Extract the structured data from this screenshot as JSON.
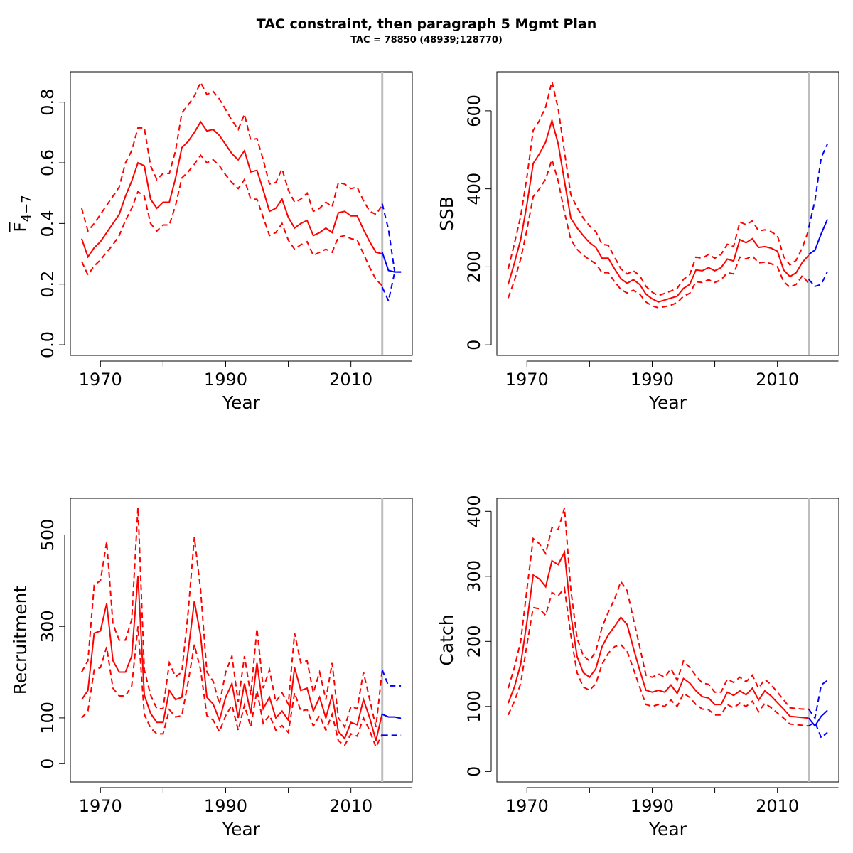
{
  "title": "TAC constraint, then paragraph 5 Mgmt Plan",
  "subtitle": "TAC = 78850 (48939;128770)",
  "colors": {
    "history": "#ff0000",
    "forecast": "#0000ff",
    "divider": "#bebebe"
  },
  "chart_data": [
    {
      "id": "fbar",
      "type": "line",
      "xlabel": "Year",
      "ylabel_main": "F",
      "ylabel_sub": "4−7",
      "xticks": [
        1970,
        1990,
        2010
      ],
      "yticks": [
        0.0,
        0.2,
        0.4,
        0.6,
        0.8
      ],
      "ytick_labels": [
        "0.0",
        "0.2",
        "0.4",
        "0.6",
        "0.8"
      ],
      "xlim": [
        1965.2,
        2019.8
      ],
      "ylim": [
        -0.035,
        0.9
      ],
      "divider_x": 2015,
      "history": {
        "x": [
          1967,
          1968,
          1969,
          1970,
          1971,
          1972,
          1973,
          1974,
          1975,
          1976,
          1977,
          1978,
          1979,
          1980,
          1981,
          1982,
          1983,
          1984,
          1985,
          1986,
          1987,
          1988,
          1989,
          1990,
          1991,
          1992,
          1993,
          1994,
          1995,
          1996,
          1997,
          1998,
          1999,
          2000,
          2001,
          2002,
          2003,
          2004,
          2005,
          2006,
          2007,
          2008,
          2009,
          2010,
          2011,
          2012,
          2013,
          2014,
          2015
        ],
        "est": [
          0.35,
          0.29,
          0.32,
          0.34,
          0.37,
          0.4,
          0.43,
          0.49,
          0.54,
          0.6,
          0.59,
          0.48,
          0.45,
          0.47,
          0.47,
          0.55,
          0.65,
          0.67,
          0.7,
          0.735,
          0.705,
          0.71,
          0.69,
          0.66,
          0.63,
          0.61,
          0.64,
          0.57,
          0.575,
          0.51,
          0.44,
          0.45,
          0.48,
          0.42,
          0.385,
          0.4,
          0.41,
          0.36,
          0.37,
          0.385,
          0.37,
          0.435,
          0.44,
          0.425,
          0.425,
          0.38,
          0.34,
          0.305,
          0.3
        ],
        "upper": [
          0.45,
          0.375,
          0.4,
          0.43,
          0.46,
          0.49,
          0.52,
          0.6,
          0.64,
          0.715,
          0.715,
          0.59,
          0.545,
          0.565,
          0.565,
          0.64,
          0.765,
          0.79,
          0.82,
          0.865,
          0.825,
          0.835,
          0.81,
          0.775,
          0.74,
          0.71,
          0.76,
          0.675,
          0.68,
          0.61,
          0.53,
          0.535,
          0.58,
          0.51,
          0.47,
          0.48,
          0.5,
          0.44,
          0.45,
          0.47,
          0.455,
          0.535,
          0.53,
          0.515,
          0.52,
          0.475,
          0.44,
          0.43,
          0.46
        ],
        "lower": [
          0.275,
          0.23,
          0.26,
          0.28,
          0.305,
          0.33,
          0.36,
          0.41,
          0.45,
          0.505,
          0.49,
          0.4,
          0.375,
          0.395,
          0.395,
          0.46,
          0.55,
          0.57,
          0.595,
          0.625,
          0.6,
          0.61,
          0.59,
          0.56,
          0.535,
          0.515,
          0.545,
          0.48,
          0.48,
          0.42,
          0.36,
          0.37,
          0.4,
          0.345,
          0.315,
          0.33,
          0.34,
          0.295,
          0.305,
          0.315,
          0.305,
          0.355,
          0.36,
          0.35,
          0.345,
          0.3,
          0.255,
          0.215,
          0.195
        ]
      },
      "forecast": {
        "x": [
          2015,
          2016,
          2017,
          2018
        ],
        "est": [
          0.305,
          0.245,
          0.24,
          0.24
        ],
        "upper": [
          0.465,
          0.38,
          0.24,
          0.24
        ],
        "lower": [
          0.19,
          0.145,
          0.24,
          0.24
        ]
      }
    },
    {
      "id": "ssb",
      "type": "line",
      "xlabel": "Year",
      "ylabel_main": "SSB",
      "ylabel_sub": "",
      "xticks": [
        1970,
        1990,
        2010
      ],
      "yticks": [
        0,
        200,
        400,
        600
      ],
      "ytick_labels": [
        "0",
        "200",
        "400",
        "600"
      ],
      "xlim": [
        1965.2,
        2019.8
      ],
      "ylim": [
        -27,
        700
      ],
      "divider_x": 2015,
      "history": {
        "x": [
          1967,
          1968,
          1969,
          1970,
          1971,
          1972,
          1973,
          1974,
          1975,
          1976,
          1977,
          1978,
          1979,
          1980,
          1981,
          1982,
          1983,
          1984,
          1985,
          1986,
          1987,
          1988,
          1989,
          1990,
          1991,
          1992,
          1993,
          1994,
          1995,
          1996,
          1997,
          1998,
          1999,
          2000,
          2001,
          2002,
          2003,
          2004,
          2005,
          2006,
          2007,
          2008,
          2009,
          2010,
          2011,
          2012,
          2013,
          2014,
          2015
        ],
        "est": [
          155,
          210,
          270,
          360,
          465,
          490,
          520,
          575,
          515,
          420,
          325,
          300,
          280,
          262,
          250,
          222,
          222,
          195,
          170,
          158,
          167,
          155,
          130,
          118,
          110,
          115,
          120,
          125,
          145,
          155,
          192,
          190,
          198,
          190,
          198,
          220,
          215,
          270,
          262,
          272,
          250,
          252,
          248,
          240,
          192,
          175,
          185,
          212,
          230
        ],
        "upper": [
          195,
          260,
          330,
          430,
          550,
          575,
          610,
          675,
          605,
          495,
          385,
          352,
          325,
          305,
          290,
          258,
          255,
          225,
          195,
          182,
          190,
          178,
          150,
          135,
          126,
          132,
          138,
          145,
          168,
          180,
          225,
          222,
          232,
          222,
          232,
          258,
          252,
          315,
          308,
          318,
          292,
          295,
          290,
          280,
          226,
          205,
          217,
          250,
          295
        ],
        "lower": [
          120,
          165,
          220,
          295,
          380,
          400,
          425,
          475,
          420,
          340,
          270,
          245,
          230,
          218,
          208,
          185,
          185,
          162,
          142,
          133,
          140,
          130,
          110,
          100,
          95,
          98,
          102,
          108,
          125,
          132,
          162,
          160,
          167,
          160,
          167,
          185,
          182,
          225,
          220,
          228,
          210,
          212,
          208,
          200,
          162,
          148,
          155,
          178,
          157
        ]
      },
      "forecast": {
        "x": [
          2015,
          2016,
          2017,
          2018
        ],
        "est": [
          232,
          243,
          285,
          322
        ],
        "upper": [
          300,
          370,
          480,
          515
        ],
        "lower": [
          168,
          150,
          155,
          188
        ]
      }
    },
    {
      "id": "recruitment",
      "type": "line",
      "xlabel": "Year",
      "ylabel_main": "Recruitment",
      "ylabel_sub": "",
      "xticks": [
        1970,
        1990,
        2010
      ],
      "yticks": [
        0,
        100,
        300,
        500
      ],
      "ytick_labels": [
        "0",
        "100",
        "300",
        "500"
      ],
      "xlim": [
        1965.2,
        2019.8
      ],
      "ylim": [
        -40,
        580
      ],
      "divider_x": 2015,
      "history": {
        "x": [
          1967,
          1968,
          1969,
          1970,
          1971,
          1972,
          1973,
          1974,
          1975,
          1976,
          1977,
          1978,
          1979,
          1980,
          1981,
          1982,
          1983,
          1984,
          1985,
          1986,
          1987,
          1988,
          1989,
          1990,
          1991,
          1992,
          1993,
          1994,
          1995,
          1996,
          1997,
          1998,
          1999,
          2000,
          2001,
          2002,
          2003,
          2004,
          2005,
          2006,
          2007,
          2008,
          2009,
          2010,
          2011,
          2012,
          2013,
          2014,
          2015
        ],
        "est": [
          140,
          160,
          285,
          290,
          350,
          225,
          200,
          200,
          235,
          410,
          150,
          110,
          90,
          90,
          160,
          140,
          145,
          245,
          355,
          280,
          145,
          130,
          95,
          145,
          175,
          100,
          175,
          110,
          220,
          120,
          145,
          100,
          115,
          95,
          210,
          160,
          165,
          115,
          145,
          100,
          150,
          70,
          55,
          90,
          85,
          140,
          100,
          50,
          110
        ],
        "upper": [
          200,
          225,
          390,
          400,
          485,
          305,
          270,
          270,
          315,
          560,
          205,
          150,
          120,
          120,
          220,
          190,
          200,
          330,
          495,
          380,
          200,
          180,
          130,
          200,
          235,
          135,
          235,
          150,
          295,
          165,
          205,
          135,
          155,
          130,
          285,
          220,
          225,
          155,
          200,
          140,
          220,
          100,
          80,
          125,
          120,
          200,
          140,
          80,
          205
        ],
        "lower": [
          100,
          115,
          205,
          210,
          255,
          165,
          148,
          148,
          170,
          300,
          108,
          78,
          65,
          65,
          118,
          102,
          105,
          178,
          260,
          205,
          105,
          95,
          70,
          105,
          128,
          73,
          128,
          80,
          160,
          88,
          106,
          73,
          83,
          68,
          155,
          115,
          118,
          82,
          105,
          73,
          108,
          50,
          40,
          65,
          60,
          100,
          72,
          36,
          65
        ]
      },
      "forecast": {
        "x": [
          2015,
          2016,
          2017,
          2018
        ],
        "est": [
          108,
          102,
          102,
          99
        ],
        "upper": [
          205,
          170,
          170,
          170
        ],
        "lower": [
          62,
          62,
          62,
          62
        ]
      }
    },
    {
      "id": "catch",
      "type": "line",
      "xlabel": "Year",
      "ylabel_main": "Catch",
      "ylabel_sub": "",
      "xticks": [
        1970,
        1990,
        2010
      ],
      "yticks": [
        0,
        100,
        200,
        300,
        400
      ],
      "ytick_labels": [
        "0",
        "100",
        "200",
        "300",
        "400"
      ],
      "xlim": [
        1965.2,
        2019.8
      ],
      "ylim": [
        -16,
        420
      ],
      "divider_x": 2015,
      "history": {
        "x": [
          1967,
          1968,
          1969,
          1970,
          1971,
          1972,
          1973,
          1974,
          1975,
          1976,
          1977,
          1978,
          1979,
          1980,
          1981,
          1982,
          1983,
          1984,
          1985,
          1986,
          1987,
          1988,
          1989,
          1990,
          1991,
          1992,
          1993,
          1994,
          1995,
          1996,
          1997,
          1998,
          1999,
          2000,
          2001,
          2002,
          2003,
          2004,
          2005,
          2006,
          2007,
          2008,
          2009,
          2010,
          2011,
          2012,
          2013,
          2014,
          2015
        ],
        "est": [
          105,
          130,
          165,
          230,
          302,
          296,
          284,
          324,
          318,
          337,
          242,
          177,
          152,
          145,
          158,
          192,
          210,
          223,
          237,
          226,
          190,
          156,
          125,
          122,
          125,
          122,
          133,
          120,
          143,
          136,
          124,
          115,
          113,
          103,
          103,
          122,
          117,
          124,
          118,
          128,
          110,
          124,
          116,
          106,
          96,
          85,
          84,
          83,
          82
        ],
        "upper": [
          128,
          160,
          200,
          280,
          358,
          350,
          335,
          375,
          372,
          405,
          280,
          205,
          178,
          170,
          185,
          222,
          245,
          265,
          292,
          278,
          235,
          192,
          148,
          145,
          150,
          145,
          158,
          140,
          170,
          160,
          147,
          136,
          134,
          122,
          122,
          142,
          137,
          145,
          138,
          148,
          128,
          142,
          133,
          122,
          110,
          98,
          97,
          96,
          96
        ],
        "lower": [
          87,
          108,
          135,
          195,
          252,
          250,
          240,
          275,
          270,
          282,
          210,
          152,
          130,
          125,
          135,
          165,
          182,
          192,
          195,
          185,
          158,
          130,
          103,
          100,
          103,
          100,
          110,
          100,
          120,
          114,
          103,
          96,
          95,
          87,
          87,
          103,
          98,
          105,
          100,
          108,
          92,
          105,
          98,
          90,
          82,
          73,
          72,
          71,
          70
        ]
      },
      "forecast": {
        "x": [
          2015,
          2016,
          2017,
          2018
        ],
        "est": [
          82,
          70,
          85,
          94
        ],
        "upper": [
          96,
          82,
          133,
          140
        ],
        "lower": [
          70,
          76,
          52,
          60
        ]
      }
    }
  ]
}
